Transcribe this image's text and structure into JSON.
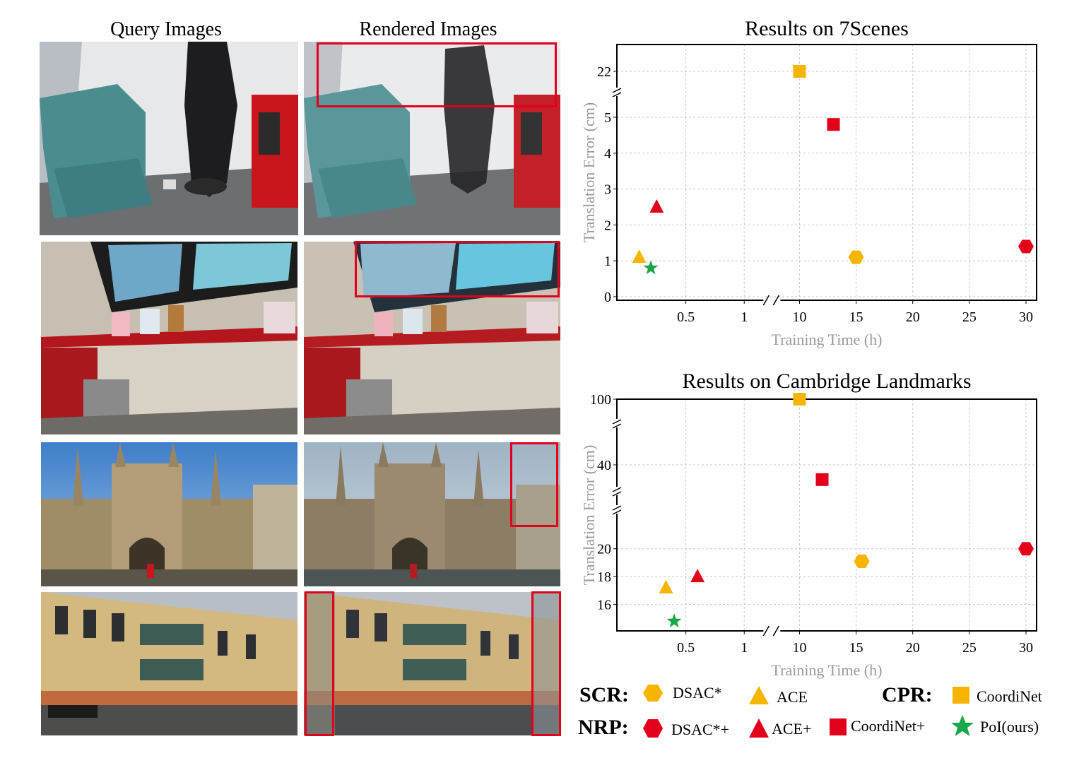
{
  "columns": {
    "query_title": "Query Images",
    "rendered_title": "Rendered Images"
  },
  "charts": [
    {
      "title": "Results on 7Scenes",
      "xlabel": "Training Time (h)",
      "ylabel": "Translation Error (cm)",
      "x_ticks": [
        "0.5",
        "1",
        "10",
        "15",
        "20",
        "25",
        "30"
      ],
      "y_ticks": [
        "0",
        "1",
        "2",
        "3",
        "4",
        "5",
        "22"
      ]
    },
    {
      "title": "Results on Cambridge Landmarks",
      "xlabel": "Training Time (h)",
      "ylabel": "Translation Error (cm)",
      "x_ticks": [
        "0.5",
        "1",
        "10",
        "15",
        "20",
        "25",
        "30"
      ],
      "y_ticks": [
        "16",
        "18",
        "20",
        "40",
        "100"
      ]
    }
  ],
  "chart_data": [
    {
      "type": "scatter",
      "title": "Results on 7Scenes",
      "xlabel": "Training Time (h)",
      "ylabel": "Translation Error (cm)",
      "x_axis": "broken: 0.5–1 then 10–30",
      "y_axis": "broken: 0–5 then 22",
      "grid": true,
      "series": [
        {
          "name": "DSAC*",
          "marker": "hexagon",
          "color": "#f7b500",
          "points": [
            [
              15,
              1.1
            ]
          ]
        },
        {
          "name": "ACE",
          "marker": "triangle",
          "color": "#f7b500",
          "points": [
            [
              0.1,
              1.1
            ]
          ]
        },
        {
          "name": "CoordiNet",
          "marker": "square",
          "color": "#f7b500",
          "points": [
            [
              10,
              22
            ]
          ]
        },
        {
          "name": "DSAC*+",
          "marker": "hexagon",
          "color": "#e3001b",
          "points": [
            [
              30,
              1.4
            ]
          ]
        },
        {
          "name": "ACE+",
          "marker": "triangle",
          "color": "#e3001b",
          "points": [
            [
              0.25,
              2.5
            ]
          ]
        },
        {
          "name": "CoordiNet+",
          "marker": "square",
          "color": "#e3001b",
          "points": [
            [
              13,
              4.8
            ]
          ]
        },
        {
          "name": "PoI(ours)",
          "marker": "star",
          "color": "#1aa64a",
          "points": [
            [
              0.2,
              0.8
            ]
          ]
        }
      ]
    },
    {
      "type": "scatter",
      "title": "Results on Cambridge Landmarks",
      "xlabel": "Training Time (h)",
      "ylabel": "Translation Error (cm)",
      "x_axis": "broken: 0.5–1 then 10–30",
      "y_axis": "broken: 15–21, 40, 100",
      "grid": true,
      "series": [
        {
          "name": "DSAC*",
          "marker": "hexagon",
          "color": "#f7b500",
          "points": [
            [
              15.5,
              19.1
            ]
          ]
        },
        {
          "name": "ACE",
          "marker": "triangle",
          "color": "#f7b500",
          "points": [
            [
              0.33,
              17.2
            ]
          ]
        },
        {
          "name": "CoordiNet",
          "marker": "square",
          "color": "#f7b500",
          "points": [
            [
              10,
              100
            ]
          ]
        },
        {
          "name": "DSAC*+",
          "marker": "hexagon",
          "color": "#e3001b",
          "points": [
            [
              30,
              20
            ]
          ]
        },
        {
          "name": "ACE+",
          "marker": "triangle",
          "color": "#e3001b",
          "points": [
            [
              0.6,
              18
            ]
          ]
        },
        {
          "name": "CoordiNet+",
          "marker": "square",
          "color": "#e3001b",
          "points": [
            [
              12,
              36
            ]
          ]
        },
        {
          "name": "PoI(ours)",
          "marker": "star",
          "color": "#1aa64a",
          "points": [
            [
              0.4,
              14.8
            ]
          ]
        }
      ]
    }
  ],
  "legend": {
    "groups": [
      {
        "label": "SCR:",
        "items": [
          "DSAC*",
          "ACE"
        ]
      },
      {
        "label": "CPR:",
        "items": [
          "CoordiNet"
        ]
      },
      {
        "label": "NRP:",
        "items": [
          "DSAC*+",
          "ACE+",
          "CoordiNet+",
          "PoI(ours)"
        ]
      }
    ],
    "colors": {
      "yellow": "#f7b500",
      "red": "#e3001b",
      "green": "#1aa64a"
    }
  }
}
